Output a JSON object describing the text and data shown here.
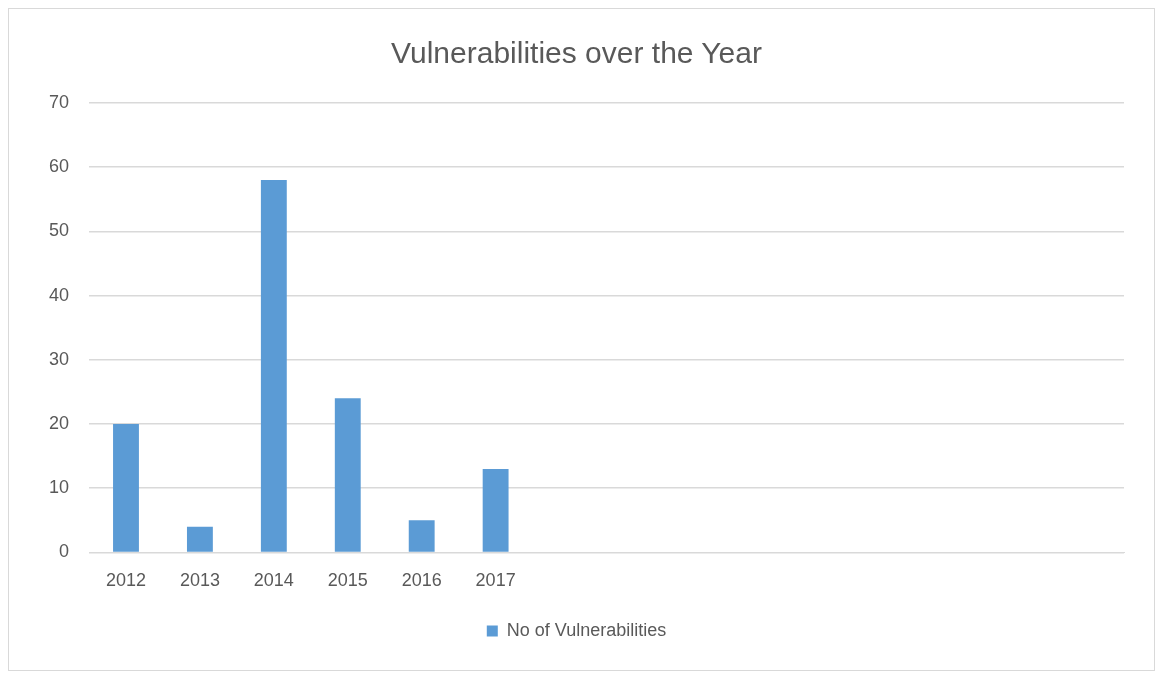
{
  "chart_data": {
    "type": "bar",
    "title": "Vulnerabilities over the Year",
    "categories": [
      "2012",
      "2013",
      "2014",
      "2015",
      "2016",
      "2017",
      null,
      null,
      null,
      null,
      null,
      null,
      null,
      null
    ],
    "series": [
      {
        "name": "No of Vulnerabilities",
        "color": "#5b9bd5",
        "values": [
          20,
          4,
          58,
          24,
          5,
          13,
          null,
          null,
          null,
          null,
          null,
          null,
          null,
          null
        ]
      }
    ],
    "ylim": [
      0,
      70
    ],
    "yticks": [
      0,
      10,
      20,
      30,
      40,
      50,
      60,
      70
    ],
    "grid": "y",
    "legend": "bottom"
  }
}
